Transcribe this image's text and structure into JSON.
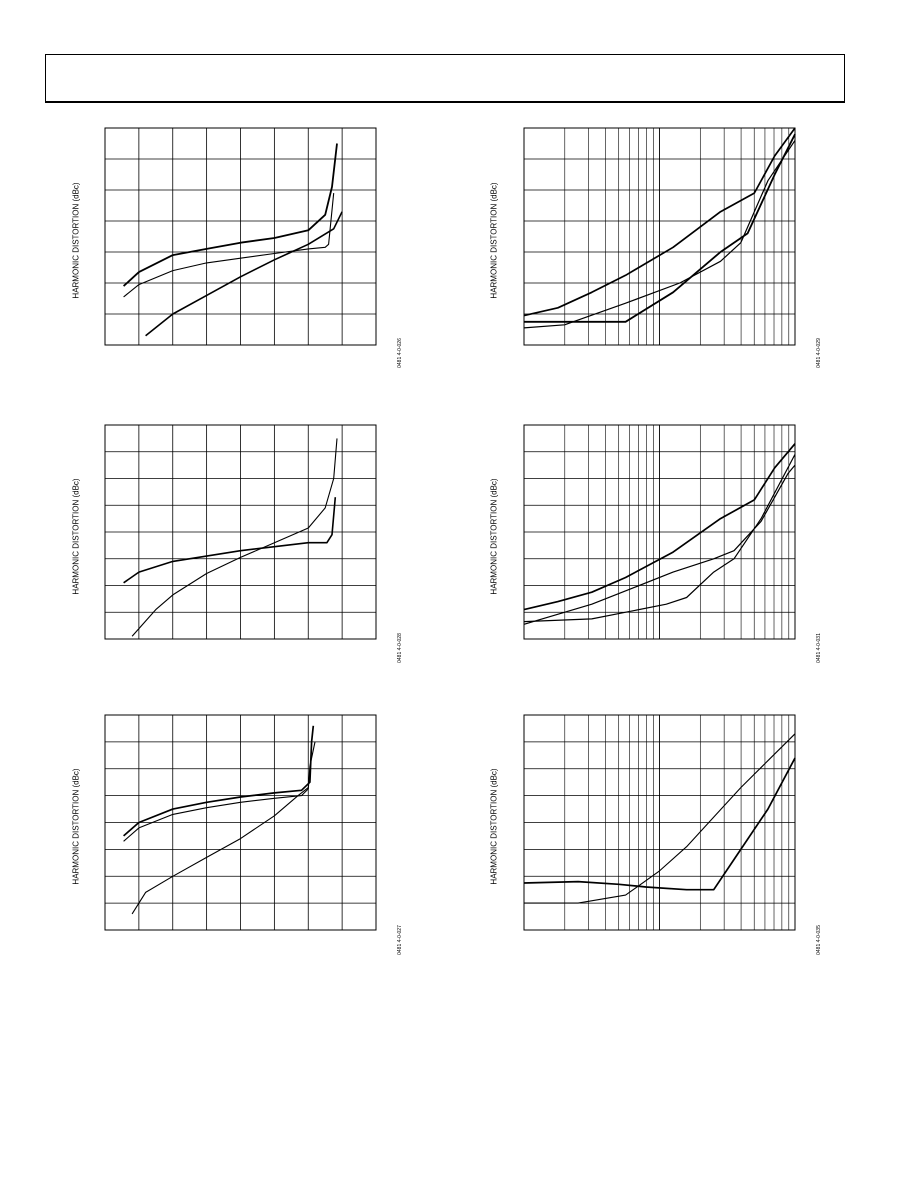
{
  "page": {
    "y_axis_label": "HARMONIC DISTORTION (dBc)"
  },
  "chart_data": [
    {
      "type": "line",
      "id": "0481 4-0-026",
      "ylabel": "HARMONIC DISTORTION (dBc)",
      "x_scale": "linear",
      "x_divisions": 8,
      "y_divisions": 7,
      "grid": true,
      "xlim": [
        0,
        8
      ],
      "ylim": [
        0,
        7
      ],
      "series": [
        {
          "values": [
            [
              0.55,
              1.9
            ],
            [
              1,
              2.35
            ],
            [
              2,
              2.9
            ],
            [
              3,
              3.1
            ],
            [
              4,
              3.3
            ],
            [
              5,
              3.45
            ],
            [
              6,
              3.7
            ],
            [
              6.5,
              4.2
            ],
            [
              6.7,
              5.1
            ],
            [
              6.85,
              6.5
            ]
          ],
          "weight": 1.8
        },
        {
          "values": [
            [
              0.55,
              1.55
            ],
            [
              1,
              1.95
            ],
            [
              2,
              2.4
            ],
            [
              3,
              2.65
            ],
            [
              4,
              2.8
            ],
            [
              5,
              2.95
            ],
            [
              6,
              3.1
            ],
            [
              6.5,
              3.15
            ],
            [
              6.6,
              3.25
            ],
            [
              6.75,
              4.9
            ]
          ],
          "weight": 1.1
        },
        {
          "values": [
            [
              1.2,
              0.3
            ],
            [
              2,
              1.0
            ],
            [
              3,
              1.6
            ],
            [
              4,
              2.2
            ],
            [
              5,
              2.75
            ],
            [
              6,
              3.25
            ],
            [
              6.75,
              3.75
            ],
            [
              7,
              4.3
            ]
          ],
          "weight": 1.6
        }
      ]
    },
    {
      "type": "line",
      "id": "0481 4-0-029",
      "ylabel": "HARMONIC DISTORTION (dBc)",
      "x_scale": "log",
      "x_decades": 2,
      "y_divisions": 7,
      "grid": true,
      "xlim": [
        0,
        2
      ],
      "ylim": [
        0,
        7
      ],
      "series": [
        {
          "values": [
            [
              0,
              0.95
            ],
            [
              0.25,
              1.2
            ],
            [
              0.5,
              1.7
            ],
            [
              0.75,
              2.25
            ],
            [
              1.1,
              3.15
            ],
            [
              1.45,
              4.3
            ],
            [
              1.7,
              4.9
            ],
            [
              1.85,
              6.1
            ],
            [
              2,
              7
            ]
          ],
          "weight": 1.7
        },
        {
          "values": [
            [
              0,
              0.55
            ],
            [
              0.3,
              0.65
            ],
            [
              0.75,
              1.35
            ],
            [
              1.15,
              2.0
            ],
            [
              1.45,
              2.7
            ],
            [
              1.6,
              3.3
            ],
            [
              1.8,
              5.3
            ],
            [
              2,
              6.6
            ]
          ],
          "weight": 1.2
        },
        {
          "values": [
            [
              0,
              0.75
            ],
            [
              0.75,
              0.75
            ],
            [
              1.1,
              1.7
            ],
            [
              1.45,
              3.0
            ],
            [
              1.65,
              3.6
            ],
            [
              1.85,
              5.5
            ],
            [
              2,
              6.8
            ]
          ],
          "weight": 1.8
        }
      ]
    },
    {
      "type": "line",
      "id": "0481 4-0-028",
      "ylabel": "HARMONIC DISTORTION (dBc)",
      "x_scale": "linear",
      "x_divisions": 8,
      "y_divisions": 8,
      "grid": true,
      "xlim": [
        0,
        8
      ],
      "ylim": [
        0,
        8
      ],
      "series": [
        {
          "values": [
            [
              0.55,
              2.1
            ],
            [
              1,
              2.5
            ],
            [
              2,
              2.9
            ],
            [
              3,
              3.1
            ],
            [
              4,
              3.3
            ],
            [
              5,
              3.45
            ],
            [
              6,
              3.6
            ],
            [
              6.55,
              3.6
            ],
            [
              6.7,
              3.9
            ],
            [
              6.8,
              5.3
            ]
          ],
          "weight": 1.6
        },
        {
          "values": [
            [
              0.8,
              0.1
            ],
            [
              1.5,
              1.1
            ],
            [
              2,
              1.65
            ],
            [
              3,
              2.45
            ],
            [
              4,
              3.05
            ],
            [
              5,
              3.6
            ],
            [
              6,
              4.15
            ],
            [
              6.5,
              4.9
            ],
            [
              6.75,
              6.0
            ],
            [
              6.85,
              7.5
            ]
          ],
          "weight": 1.1
        }
      ]
    },
    {
      "type": "line",
      "id": "0481 4-0-031",
      "ylabel": "HARMONIC DISTORTION (dBc)",
      "x_scale": "log",
      "x_decades": 2,
      "y_divisions": 8,
      "grid": true,
      "xlim": [
        0,
        2
      ],
      "ylim": [
        0,
        8
      ],
      "series": [
        {
          "values": [
            [
              0,
              1.1
            ],
            [
              0.25,
              1.4
            ],
            [
              0.5,
              1.75
            ],
            [
              0.75,
              2.3
            ],
            [
              1.1,
              3.25
            ],
            [
              1.45,
              4.5
            ],
            [
              1.7,
              5.2
            ],
            [
              1.85,
              6.4
            ],
            [
              2,
              7.3
            ]
          ],
          "weight": 1.7
        },
        {
          "values": [
            [
              0,
              0.55
            ],
            [
              0.5,
              1.3
            ],
            [
              0.8,
              1.9
            ],
            [
              1.1,
              2.5
            ],
            [
              1.4,
              3.0
            ],
            [
              1.55,
              3.3
            ],
            [
              1.75,
              4.4
            ],
            [
              1.95,
              6.2
            ],
            [
              2,
              6.5
            ]
          ],
          "weight": 1.2
        },
        {
          "values": [
            [
              0,
              0.65
            ],
            [
              0.5,
              0.75
            ],
            [
              1.05,
              1.3
            ],
            [
              1.2,
              1.55
            ],
            [
              1.4,
              2.5
            ],
            [
              1.55,
              3.0
            ],
            [
              1.75,
              4.5
            ],
            [
              2,
              6.9
            ]
          ],
          "weight": 1.2
        }
      ]
    },
    {
      "type": "line",
      "id": "0481 4-0-027",
      "ylabel": "HARMONIC DISTORTION (dBc)",
      "x_scale": "linear",
      "x_divisions": 8,
      "y_divisions": 8,
      "grid": true,
      "xlim": [
        0,
        8
      ],
      "ylim": [
        0,
        8
      ],
      "series": [
        {
          "values": [
            [
              0.55,
              3.5
            ],
            [
              1,
              4.0
            ],
            [
              2,
              4.5
            ],
            [
              3,
              4.75
            ],
            [
              4,
              4.95
            ],
            [
              5,
              5.1
            ],
            [
              5.8,
              5.2
            ],
            [
              6.05,
              5.5
            ],
            [
              6.1,
              7.0
            ],
            [
              6.15,
              7.6
            ]
          ],
          "weight": 1.7
        },
        {
          "values": [
            [
              0.55,
              3.3
            ],
            [
              1,
              3.8
            ],
            [
              2,
              4.3
            ],
            [
              3,
              4.55
            ],
            [
              4,
              4.75
            ],
            [
              5,
              4.9
            ],
            [
              5.8,
              5.0
            ],
            [
              6.0,
              5.25
            ],
            [
              6.05,
              6.1
            ],
            [
              6.2,
              7.0
            ]
          ],
          "weight": 1.1
        },
        {
          "values": [
            [
              0.8,
              0.6
            ],
            [
              1.2,
              1.4
            ],
            [
              2,
              2.0
            ],
            [
              3,
              2.7
            ],
            [
              4,
              3.4
            ],
            [
              5,
              4.25
            ],
            [
              5.7,
              5.0
            ],
            [
              6.0,
              5.3
            ]
          ],
          "weight": 1.1
        }
      ]
    },
    {
      "type": "line",
      "id": "0481 4-0-035",
      "ylabel": "HARMONIC DISTORTION (dBc)",
      "x_scale": "log",
      "x_decades": 2,
      "y_divisions": 8,
      "grid": true,
      "xlim": [
        0,
        2
      ],
      "ylim": [
        0,
        8
      ],
      "series": [
        {
          "values": [
            [
              0,
              1.75
            ],
            [
              0.4,
              1.8
            ],
            [
              0.7,
              1.7
            ],
            [
              0.9,
              1.6
            ],
            [
              1.2,
              1.5
            ],
            [
              1.4,
              1.5
            ],
            [
              1.6,
              3.0
            ],
            [
              1.8,
              4.5
            ],
            [
              2,
              6.4
            ]
          ],
          "weight": 1.7
        },
        {
          "values": [
            [
              0,
              1.0
            ],
            [
              0.4,
              1.0
            ],
            [
              0.75,
              1.3
            ],
            [
              1.0,
              2.2
            ],
            [
              1.2,
              3.1
            ],
            [
              1.4,
              4.2
            ],
            [
              1.6,
              5.3
            ],
            [
              1.8,
              6.3
            ],
            [
              2,
              7.3
            ]
          ],
          "weight": 1.1
        }
      ]
    }
  ]
}
